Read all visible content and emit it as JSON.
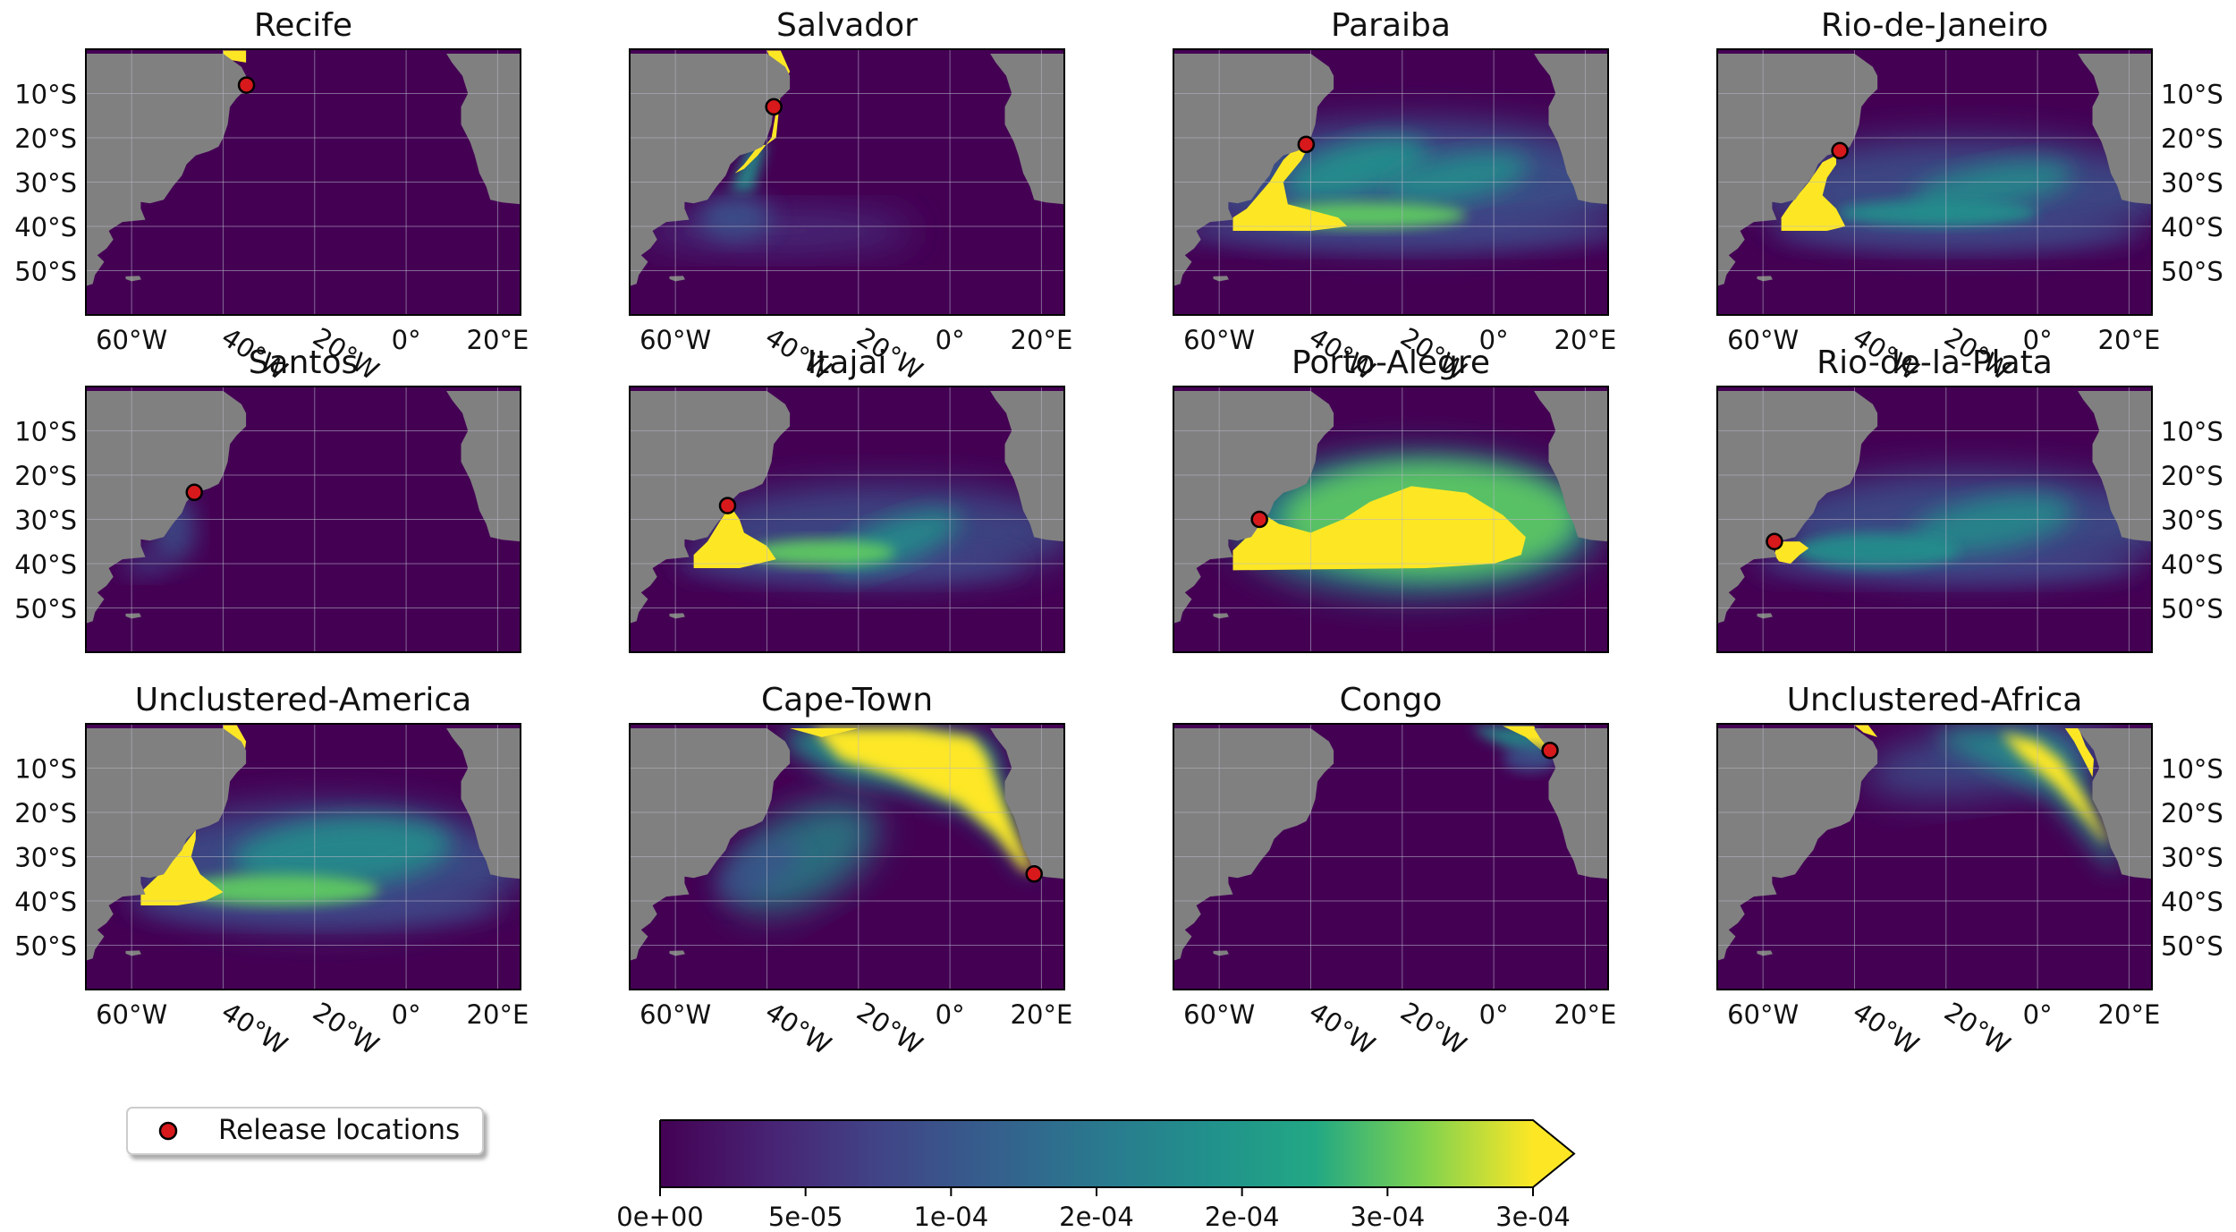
{
  "panels": [
    {
      "title": "Recife",
      "release": {
        "lon": -34.9,
        "lat": -8.1
      },
      "plume": "recife",
      "lat_labels_left": true,
      "lat_labels_right": false,
      "lon_labels": true
    },
    {
      "title": "Salvador",
      "release": {
        "lon": -38.5,
        "lat": -13.0
      },
      "plume": "salvador",
      "lat_labels_left": false,
      "lat_labels_right": false,
      "lon_labels": true
    },
    {
      "title": "Paraiba",
      "release": {
        "lon": -41.0,
        "lat": -21.5
      },
      "plume": "paraiba",
      "lat_labels_left": false,
      "lat_labels_right": false,
      "lon_labels": true
    },
    {
      "title": "Rio-de-Janeiro",
      "release": {
        "lon": -43.2,
        "lat": -22.9
      },
      "plume": "rio",
      "lat_labels_left": false,
      "lat_labels_right": true,
      "lon_labels": true
    },
    {
      "title": "Santos",
      "release": {
        "lon": -46.3,
        "lat": -23.9
      },
      "plume": "santos",
      "lat_labels_left": true,
      "lat_labels_right": false,
      "lon_labels": false
    },
    {
      "title": "Itajai",
      "release": {
        "lon": -48.6,
        "lat": -26.9
      },
      "plume": "itajai",
      "lat_labels_left": false,
      "lat_labels_right": false,
      "lon_labels": false
    },
    {
      "title": "Porto-Alegre",
      "release": {
        "lon": -51.2,
        "lat": -30.0
      },
      "plume": "portoalegre",
      "lat_labels_left": false,
      "lat_labels_right": false,
      "lon_labels": false
    },
    {
      "title": "Rio-de-la-Plata",
      "release": {
        "lon": -57.5,
        "lat": -35.0
      },
      "plume": "plata",
      "lat_labels_left": false,
      "lat_labels_right": true,
      "lon_labels": false
    },
    {
      "title": "Unclustered-America",
      "release": null,
      "plume": "uamerica",
      "lat_labels_left": true,
      "lat_labels_right": false,
      "lon_labels": true
    },
    {
      "title": "Cape-Town",
      "release": {
        "lon": 18.4,
        "lat": -33.9
      },
      "plume": "capetown",
      "lat_labels_left": false,
      "lat_labels_right": false,
      "lon_labels": true
    },
    {
      "title": "Congo",
      "release": {
        "lon": 12.3,
        "lat": -6.0
      },
      "plume": "congo",
      "lat_labels_left": false,
      "lat_labels_right": false,
      "lon_labels": true
    },
    {
      "title": "Unclustered-Africa",
      "release": null,
      "plume": "uafrica",
      "lat_labels_left": false,
      "lat_labels_right": true,
      "lon_labels": true
    }
  ],
  "map_extent": {
    "lon": [
      -70,
      25
    ],
    "lat": [
      -60,
      0
    ]
  },
  "lat_ticks": [
    {
      "v": -10,
      "label": "10°S"
    },
    {
      "v": -20,
      "label": "20°S"
    },
    {
      "v": -30,
      "label": "30°S"
    },
    {
      "v": -40,
      "label": "40°S"
    },
    {
      "v": -50,
      "label": "50°S"
    }
  ],
  "lon_ticks": [
    {
      "v": -60,
      "label": "60°W",
      "rotated": false
    },
    {
      "v": -40,
      "label": "40°W",
      "rotated": true
    },
    {
      "v": -20,
      "label": "20°W",
      "rotated": true
    },
    {
      "v": 0,
      "label": "0°",
      "rotated": false
    },
    {
      "v": 20,
      "label": "20°E",
      "rotated": false
    }
  ],
  "legend": {
    "label": "Release locations",
    "marker_color": "#d7191c"
  },
  "colorbar": {
    "ticks": [
      "0e+00",
      "5e-05",
      "1e-04",
      "2e-04",
      "2e-04",
      "3e-04",
      "3e-04"
    ],
    "min": 0,
    "max": 0.0003,
    "extend": "max",
    "colormap": "viridis"
  },
  "colors": {
    "land": "#808080",
    "ocean_low": "#440154",
    "high": "#fde725",
    "grid": "#b8b8c8"
  }
}
